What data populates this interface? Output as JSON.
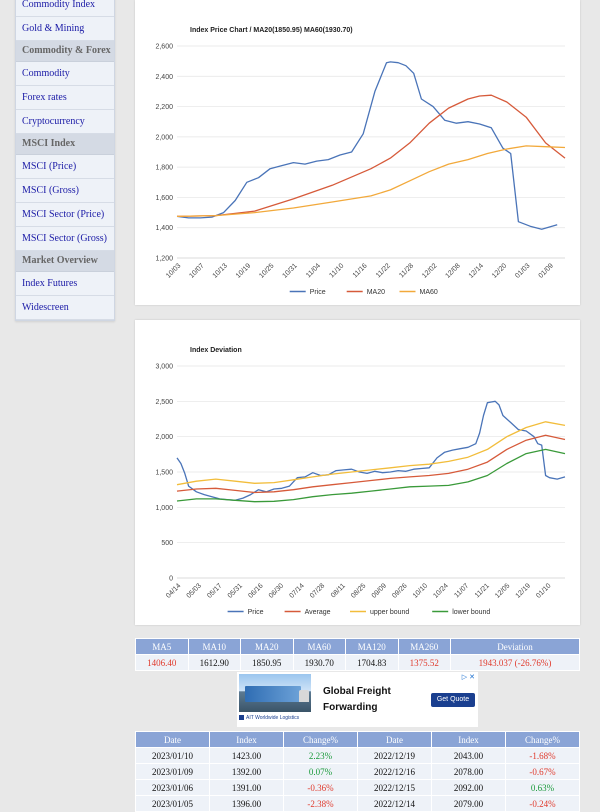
{
  "sidebar": {
    "items": [
      {
        "type": "item",
        "label": "Commodity Index"
      },
      {
        "type": "item",
        "label": "Gold & Mining"
      },
      {
        "type": "head",
        "label": "Commodity & Forex"
      },
      {
        "type": "item",
        "label": "Commodity"
      },
      {
        "type": "item",
        "label": "Forex rates"
      },
      {
        "type": "item",
        "label": "Cryptocurrency"
      },
      {
        "type": "head",
        "label": "MSCI Index"
      },
      {
        "type": "item",
        "label": "MSCI (Price)"
      },
      {
        "type": "item",
        "label": "MSCI (Gross)"
      },
      {
        "type": "item",
        "label": "MSCI Sector (Price)"
      },
      {
        "type": "item",
        "label": "MSCI Sector (Gross)"
      },
      {
        "type": "head",
        "label": "Market Overview"
      },
      {
        "type": "item",
        "label": "Index Futures"
      },
      {
        "type": "item",
        "label": "Widescreen"
      }
    ]
  },
  "chart_data": [
    {
      "type": "line",
      "title": "Index Price Chart / MA20(1850.95) MA60(1930.70)",
      "ylim": [
        1200,
        2600
      ],
      "yticks": [
        1200,
        1400,
        1600,
        1800,
        2000,
        2200,
        2400,
        2600
      ],
      "ytick_labels": [
        "1,200",
        "1,400",
        "1,600",
        "1,800",
        "2,000",
        "2,200",
        "2,400",
        "2,600"
      ],
      "xlim": [
        0,
        100
      ],
      "x_ticks": [
        {
          "x": 0,
          "label": "10/03"
        },
        {
          "x": 6,
          "label": "10/07"
        },
        {
          "x": 12,
          "label": "10/13"
        },
        {
          "x": 18,
          "label": "10/19"
        },
        {
          "x": 24,
          "label": "10/25"
        },
        {
          "x": 30,
          "label": "10/31"
        },
        {
          "x": 36,
          "label": "11/04"
        },
        {
          "x": 42,
          "label": "11/10"
        },
        {
          "x": 48,
          "label": "11/16"
        },
        {
          "x": 54,
          "label": "11/22"
        },
        {
          "x": 60,
          "label": "11/28"
        },
        {
          "x": 66,
          "label": "12/02"
        },
        {
          "x": 72,
          "label": "12/08"
        },
        {
          "x": 78,
          "label": "12/14"
        },
        {
          "x": 84,
          "label": "12/20"
        },
        {
          "x": 90,
          "label": "01/03"
        },
        {
          "x": 96,
          "label": "01/09"
        }
      ],
      "legend_position": "bottom",
      "grid": true,
      "series": [
        {
          "name": "Price",
          "color": "#4a74b8",
          "x": [
            0,
            3,
            6,
            9,
            12,
            15,
            18,
            21,
            24,
            27,
            30,
            33,
            36,
            39,
            42,
            45,
            48,
            51,
            54,
            55,
            57,
            59,
            61,
            63,
            66,
            69,
            72,
            75,
            78,
            81,
            84,
            86,
            88,
            91,
            94,
            98
          ],
          "y": [
            1475,
            1465,
            1465,
            1470,
            1500,
            1580,
            1700,
            1730,
            1790,
            1810,
            1830,
            1820,
            1840,
            1850,
            1880,
            1900,
            2020,
            2300,
            2490,
            2495,
            2490,
            2470,
            2420,
            2250,
            2200,
            2110,
            2090,
            2100,
            2085,
            2060,
            1925,
            1890,
            1440,
            1410,
            1390,
            1420
          ]
        },
        {
          "name": "MA20",
          "color": "#d65a3a",
          "x": [
            0,
            10,
            20,
            30,
            40,
            50,
            55,
            60,
            65,
            70,
            75,
            78,
            81,
            85,
            90,
            95,
            100
          ],
          "y": [
            1475,
            1480,
            1510,
            1590,
            1680,
            1790,
            1860,
            1960,
            2090,
            2190,
            2250,
            2270,
            2275,
            2230,
            2130,
            1960,
            1860
          ]
        },
        {
          "name": "MA60",
          "color": "#f2a93b",
          "x": [
            0,
            10,
            20,
            30,
            40,
            50,
            55,
            60,
            65,
            70,
            75,
            80,
            85,
            90,
            95,
            100
          ],
          "y": [
            1475,
            1480,
            1500,
            1530,
            1570,
            1610,
            1650,
            1710,
            1770,
            1820,
            1850,
            1890,
            1920,
            1940,
            1935,
            1930
          ]
        }
      ]
    },
    {
      "type": "line",
      "title": "Index Deviation",
      "ylim": [
        0,
        3000
      ],
      "yticks": [
        0,
        500,
        1000,
        1500,
        2000,
        2500,
        3000
      ],
      "ytick_labels": [
        "0",
        "500",
        "1,000",
        "1,500",
        "2,000",
        "2,500",
        "3,000"
      ],
      "xlim": [
        0,
        100
      ],
      "x_ticks": [
        {
          "x": 0,
          "label": "04/14"
        },
        {
          "x": 5.3,
          "label": "05/03"
        },
        {
          "x": 10.6,
          "label": "05/17"
        },
        {
          "x": 15.9,
          "label": "05/31"
        },
        {
          "x": 21.2,
          "label": "06/16"
        },
        {
          "x": 26.5,
          "label": "06/30"
        },
        {
          "x": 31.8,
          "label": "07/14"
        },
        {
          "x": 37.1,
          "label": "07/28"
        },
        {
          "x": 42.4,
          "label": "08/11"
        },
        {
          "x": 47.7,
          "label": "08/25"
        },
        {
          "x": 53,
          "label": "09/09"
        },
        {
          "x": 58.3,
          "label": "09/26"
        },
        {
          "x": 63.6,
          "label": "10/10"
        },
        {
          "x": 68.9,
          "label": "10/24"
        },
        {
          "x": 74.2,
          "label": "11/07"
        },
        {
          "x": 79.5,
          "label": "11/21"
        },
        {
          "x": 84.8,
          "label": "12/05"
        },
        {
          "x": 90.1,
          "label": "12/19"
        },
        {
          "x": 95.4,
          "label": "01/10"
        }
      ],
      "legend_position": "bottom",
      "grid": true,
      "series": [
        {
          "name": "Price",
          "color": "#4a74b8",
          "x": [
            0,
            1,
            2,
            3,
            5,
            7,
            9,
            11,
            13,
            15,
            17,
            19,
            21,
            23,
            25,
            27,
            29,
            31,
            33,
            35,
            37,
            39,
            41,
            43,
            45,
            47,
            49,
            51,
            53,
            55,
            57,
            59,
            61,
            63,
            65,
            67,
            69,
            71,
            73,
            75,
            77,
            78,
            79,
            80,
            81,
            82,
            83,
            84,
            86,
            88,
            90,
            92,
            93,
            94,
            95,
            96,
            98,
            100
          ],
          "y": [
            1700,
            1620,
            1480,
            1300,
            1220,
            1180,
            1150,
            1120,
            1110,
            1100,
            1130,
            1180,
            1250,
            1220,
            1260,
            1270,
            1300,
            1420,
            1430,
            1490,
            1450,
            1460,
            1520,
            1530,
            1540,
            1500,
            1480,
            1510,
            1490,
            1500,
            1520,
            1510,
            1540,
            1550,
            1560,
            1700,
            1780,
            1810,
            1830,
            1850,
            1900,
            2050,
            2300,
            2480,
            2490,
            2500,
            2450,
            2300,
            2200,
            2100,
            2080,
            2000,
            1900,
            1880,
            1450,
            1420,
            1400,
            1430
          ]
        },
        {
          "name": "Average",
          "color": "#d65a3a",
          "x": [
            0,
            5,
            10,
            15,
            20,
            25,
            30,
            35,
            40,
            45,
            50,
            55,
            60,
            65,
            70,
            75,
            80,
            85,
            90,
            95,
            100
          ],
          "y": [
            1230,
            1260,
            1270,
            1240,
            1210,
            1220,
            1250,
            1290,
            1320,
            1350,
            1380,
            1410,
            1430,
            1450,
            1480,
            1540,
            1640,
            1820,
            1950,
            2020,
            1960
          ]
        },
        {
          "name": "upper bound",
          "color": "#f2bd3b",
          "x": [
            0,
            5,
            10,
            15,
            20,
            25,
            30,
            35,
            40,
            45,
            50,
            55,
            60,
            65,
            70,
            75,
            80,
            85,
            90,
            95,
            100
          ],
          "y": [
            1320,
            1370,
            1400,
            1370,
            1340,
            1350,
            1390,
            1430,
            1470,
            1500,
            1530,
            1560,
            1590,
            1610,
            1650,
            1710,
            1820,
            2000,
            2130,
            2210,
            2160
          ]
        },
        {
          "name": "lower bound",
          "color": "#3a9a3a",
          "x": [
            0,
            5,
            10,
            15,
            20,
            25,
            30,
            35,
            40,
            45,
            50,
            55,
            60,
            65,
            70,
            75,
            80,
            85,
            90,
            95,
            100
          ],
          "y": [
            1090,
            1120,
            1120,
            1100,
            1080,
            1085,
            1110,
            1150,
            1180,
            1200,
            1230,
            1260,
            1290,
            1300,
            1310,
            1360,
            1450,
            1620,
            1760,
            1820,
            1760
          ]
        }
      ]
    }
  ],
  "ma_table": {
    "headers": [
      "MA5",
      "MA10",
      "MA20",
      "MA60",
      "MA120",
      "MA260",
      "Deviation"
    ],
    "values": [
      {
        "text": "1406.40",
        "cls": "neg"
      },
      {
        "text": "1612.90",
        "cls": "pos"
      },
      {
        "text": "1850.95",
        "cls": "pos"
      },
      {
        "text": "1930.70",
        "cls": "pos"
      },
      {
        "text": "1704.83",
        "cls": "pos"
      },
      {
        "text": "1375.52",
        "cls": "neg"
      },
      {
        "text": "1943.037 (-26.76%)",
        "cls": "neg"
      }
    ]
  },
  "ad": {
    "title": "Global Freight Forwarding",
    "button": "Get Quote",
    "brand": "AIT Worldwide Logistics",
    "icons": "▷ ✕"
  },
  "data_table": {
    "headers": [
      "Date",
      "Index",
      "Change%",
      "Date",
      "Index",
      "Change%"
    ],
    "rows": [
      [
        {
          "t": "2023/01/10",
          "c": "pos"
        },
        {
          "t": "1423.00",
          "c": "pos"
        },
        {
          "t": "2.23%",
          "c": "grn"
        },
        {
          "t": "2022/12/19",
          "c": "pos"
        },
        {
          "t": "2043.00",
          "c": "pos"
        },
        {
          "t": "-1.68%",
          "c": "neg"
        }
      ],
      [
        {
          "t": "2023/01/09",
          "c": "pos"
        },
        {
          "t": "1392.00",
          "c": "pos"
        },
        {
          "t": "0.07%",
          "c": "grn"
        },
        {
          "t": "2022/12/16",
          "c": "pos"
        },
        {
          "t": "2078.00",
          "c": "pos"
        },
        {
          "t": "-0.67%",
          "c": "neg"
        }
      ],
      [
        {
          "t": "2023/01/06",
          "c": "pos"
        },
        {
          "t": "1391.00",
          "c": "pos"
        },
        {
          "t": "-0.36%",
          "c": "neg"
        },
        {
          "t": "2022/12/15",
          "c": "pos"
        },
        {
          "t": "2092.00",
          "c": "pos"
        },
        {
          "t": "0.63%",
          "c": "grn"
        }
      ],
      [
        {
          "t": "2023/01/05",
          "c": "pos"
        },
        {
          "t": "1396.00",
          "c": "pos"
        },
        {
          "t": "-2.38%",
          "c": "neg"
        },
        {
          "t": "2022/12/14",
          "c": "pos"
        },
        {
          "t": "2079.00",
          "c": "pos"
        },
        {
          "t": "-0.24%",
          "c": "neg"
        }
      ]
    ]
  }
}
